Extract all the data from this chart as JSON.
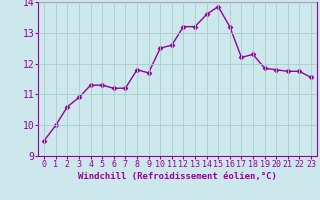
{
  "x": [
    0,
    1,
    2,
    3,
    4,
    5,
    6,
    7,
    8,
    9,
    10,
    11,
    12,
    13,
    14,
    15,
    16,
    17,
    18,
    19,
    20,
    21,
    22,
    23
  ],
  "y": [
    9.5,
    10.0,
    10.6,
    10.9,
    11.3,
    11.3,
    11.2,
    11.2,
    11.8,
    11.7,
    12.5,
    12.6,
    13.2,
    13.2,
    13.6,
    13.85,
    13.2,
    12.2,
    12.3,
    11.85,
    11.8,
    11.75,
    11.75,
    11.55
  ],
  "line_color": "#990099",
  "marker": "D",
  "marker_size": 2.5,
  "bg_color": "#cce8ec",
  "grid_color": "#aacccc",
  "xlabel": "Windchill (Refroidissement éolien,°C)",
  "xlabel_color": "#990099",
  "tick_color": "#990099",
  "label_color": "#990099",
  "ylim": [
    9,
    14
  ],
  "xlim_min": -0.5,
  "xlim_max": 23.5,
  "yticks": [
    9,
    10,
    11,
    12,
    13,
    14
  ],
  "xticks": [
    0,
    1,
    2,
    3,
    4,
    5,
    6,
    7,
    8,
    9,
    10,
    11,
    12,
    13,
    14,
    15,
    16,
    17,
    18,
    19,
    20,
    21,
    22,
    23
  ],
  "tick_fontsize": 6,
  "xlabel_fontsize": 6.5,
  "linewidth": 1.0
}
